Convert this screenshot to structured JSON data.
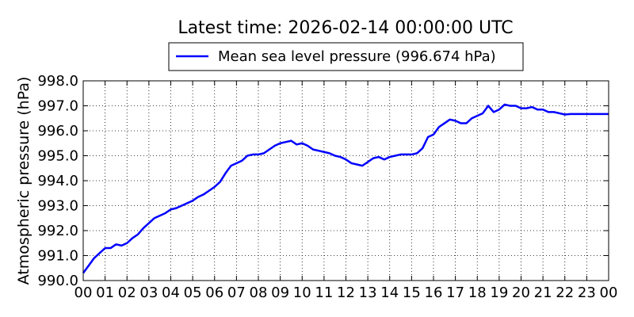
{
  "chart_data": {
    "type": "line",
    "title": "Latest time: 2026-02-14 00:00:00 UTC",
    "xlabel": "",
    "ylabel": "Atmospheric pressure (hPa)",
    "ylim": [
      990.0,
      998.0
    ],
    "yticks": [
      990.0,
      991.0,
      992.0,
      993.0,
      994.0,
      995.0,
      996.0,
      997.0,
      998.0
    ],
    "ytick_labels": [
      "990.0",
      "991.0",
      "992.0",
      "993.0",
      "994.0",
      "995.0",
      "996.0",
      "997.0",
      "998.0"
    ],
    "xlim": [
      0,
      24
    ],
    "xticks": [
      0,
      1,
      2,
      3,
      4,
      5,
      6,
      7,
      8,
      9,
      10,
      11,
      12,
      13,
      14,
      15,
      16,
      17,
      18,
      19,
      20,
      21,
      22,
      23,
      24
    ],
    "xtick_labels": [
      "00",
      "01",
      "02",
      "03",
      "04",
      "05",
      "06",
      "07",
      "08",
      "09",
      "10",
      "11",
      "12",
      "13",
      "14",
      "15",
      "16",
      "17",
      "18",
      "19",
      "20",
      "21",
      "22",
      "23",
      "00"
    ],
    "grid": true,
    "legend_position": "top-center",
    "series": [
      {
        "name": "Mean sea level pressure (996.674 hPa)",
        "color": "#0000ff",
        "x": [
          0.0,
          0.25,
          0.5,
          0.75,
          1.0,
          1.25,
          1.5,
          1.75,
          2.0,
          2.25,
          2.5,
          2.75,
          3.0,
          3.25,
          3.5,
          3.75,
          4.0,
          4.25,
          4.5,
          4.75,
          5.0,
          5.25,
          5.5,
          5.75,
          6.0,
          6.25,
          6.5,
          6.75,
          7.0,
          7.25,
          7.5,
          7.75,
          8.0,
          8.25,
          8.5,
          8.75,
          9.0,
          9.25,
          9.5,
          9.75,
          10.0,
          10.25,
          10.5,
          10.75,
          11.0,
          11.25,
          11.5,
          11.75,
          12.0,
          12.25,
          12.5,
          12.75,
          13.0,
          13.25,
          13.5,
          13.75,
          14.0,
          14.25,
          14.5,
          14.75,
          15.0,
          15.25,
          15.5,
          15.75,
          16.0,
          16.25,
          16.5,
          16.75,
          17.0,
          17.25,
          17.5,
          17.75,
          18.0,
          18.25,
          18.5,
          18.75,
          19.0,
          19.25,
          19.5,
          19.75,
          20.0,
          20.25,
          20.5,
          20.75,
          21.0,
          21.25,
          21.5,
          21.75,
          22.0,
          22.25,
          22.5,
          22.75,
          23.0,
          23.25,
          23.5,
          23.75,
          24.0
        ],
        "y": [
          990.3,
          990.6,
          990.9,
          991.1,
          991.3,
          991.3,
          991.45,
          991.4,
          991.5,
          991.7,
          991.85,
          992.1,
          992.3,
          992.5,
          992.6,
          992.7,
          992.85,
          992.9,
          993.0,
          993.1,
          993.2,
          993.35,
          993.45,
          993.6,
          993.75,
          993.95,
          994.3,
          994.6,
          994.7,
          994.8,
          995.0,
          995.05,
          995.05,
          995.1,
          995.25,
          995.4,
          995.5,
          995.55,
          995.6,
          995.45,
          995.5,
          995.4,
          995.25,
          995.2,
          995.15,
          995.1,
          995.0,
          994.95,
          994.85,
          994.7,
          994.65,
          994.6,
          994.75,
          994.9,
          994.95,
          994.85,
          994.95,
          995.0,
          995.05,
          995.05,
          995.05,
          995.1,
          995.3,
          995.75,
          995.85,
          996.15,
          996.3,
          996.45,
          996.4,
          996.3,
          996.3,
          996.5,
          996.6,
          996.7,
          997.0,
          996.75,
          996.85,
          997.05,
          997.0,
          997.0,
          996.9,
          996.9,
          996.95,
          996.85,
          996.85,
          996.75,
          996.75,
          996.7,
          996.65,
          996.67,
          996.67,
          996.67,
          996.67,
          996.67,
          996.67,
          996.67,
          996.67
        ]
      }
    ]
  }
}
